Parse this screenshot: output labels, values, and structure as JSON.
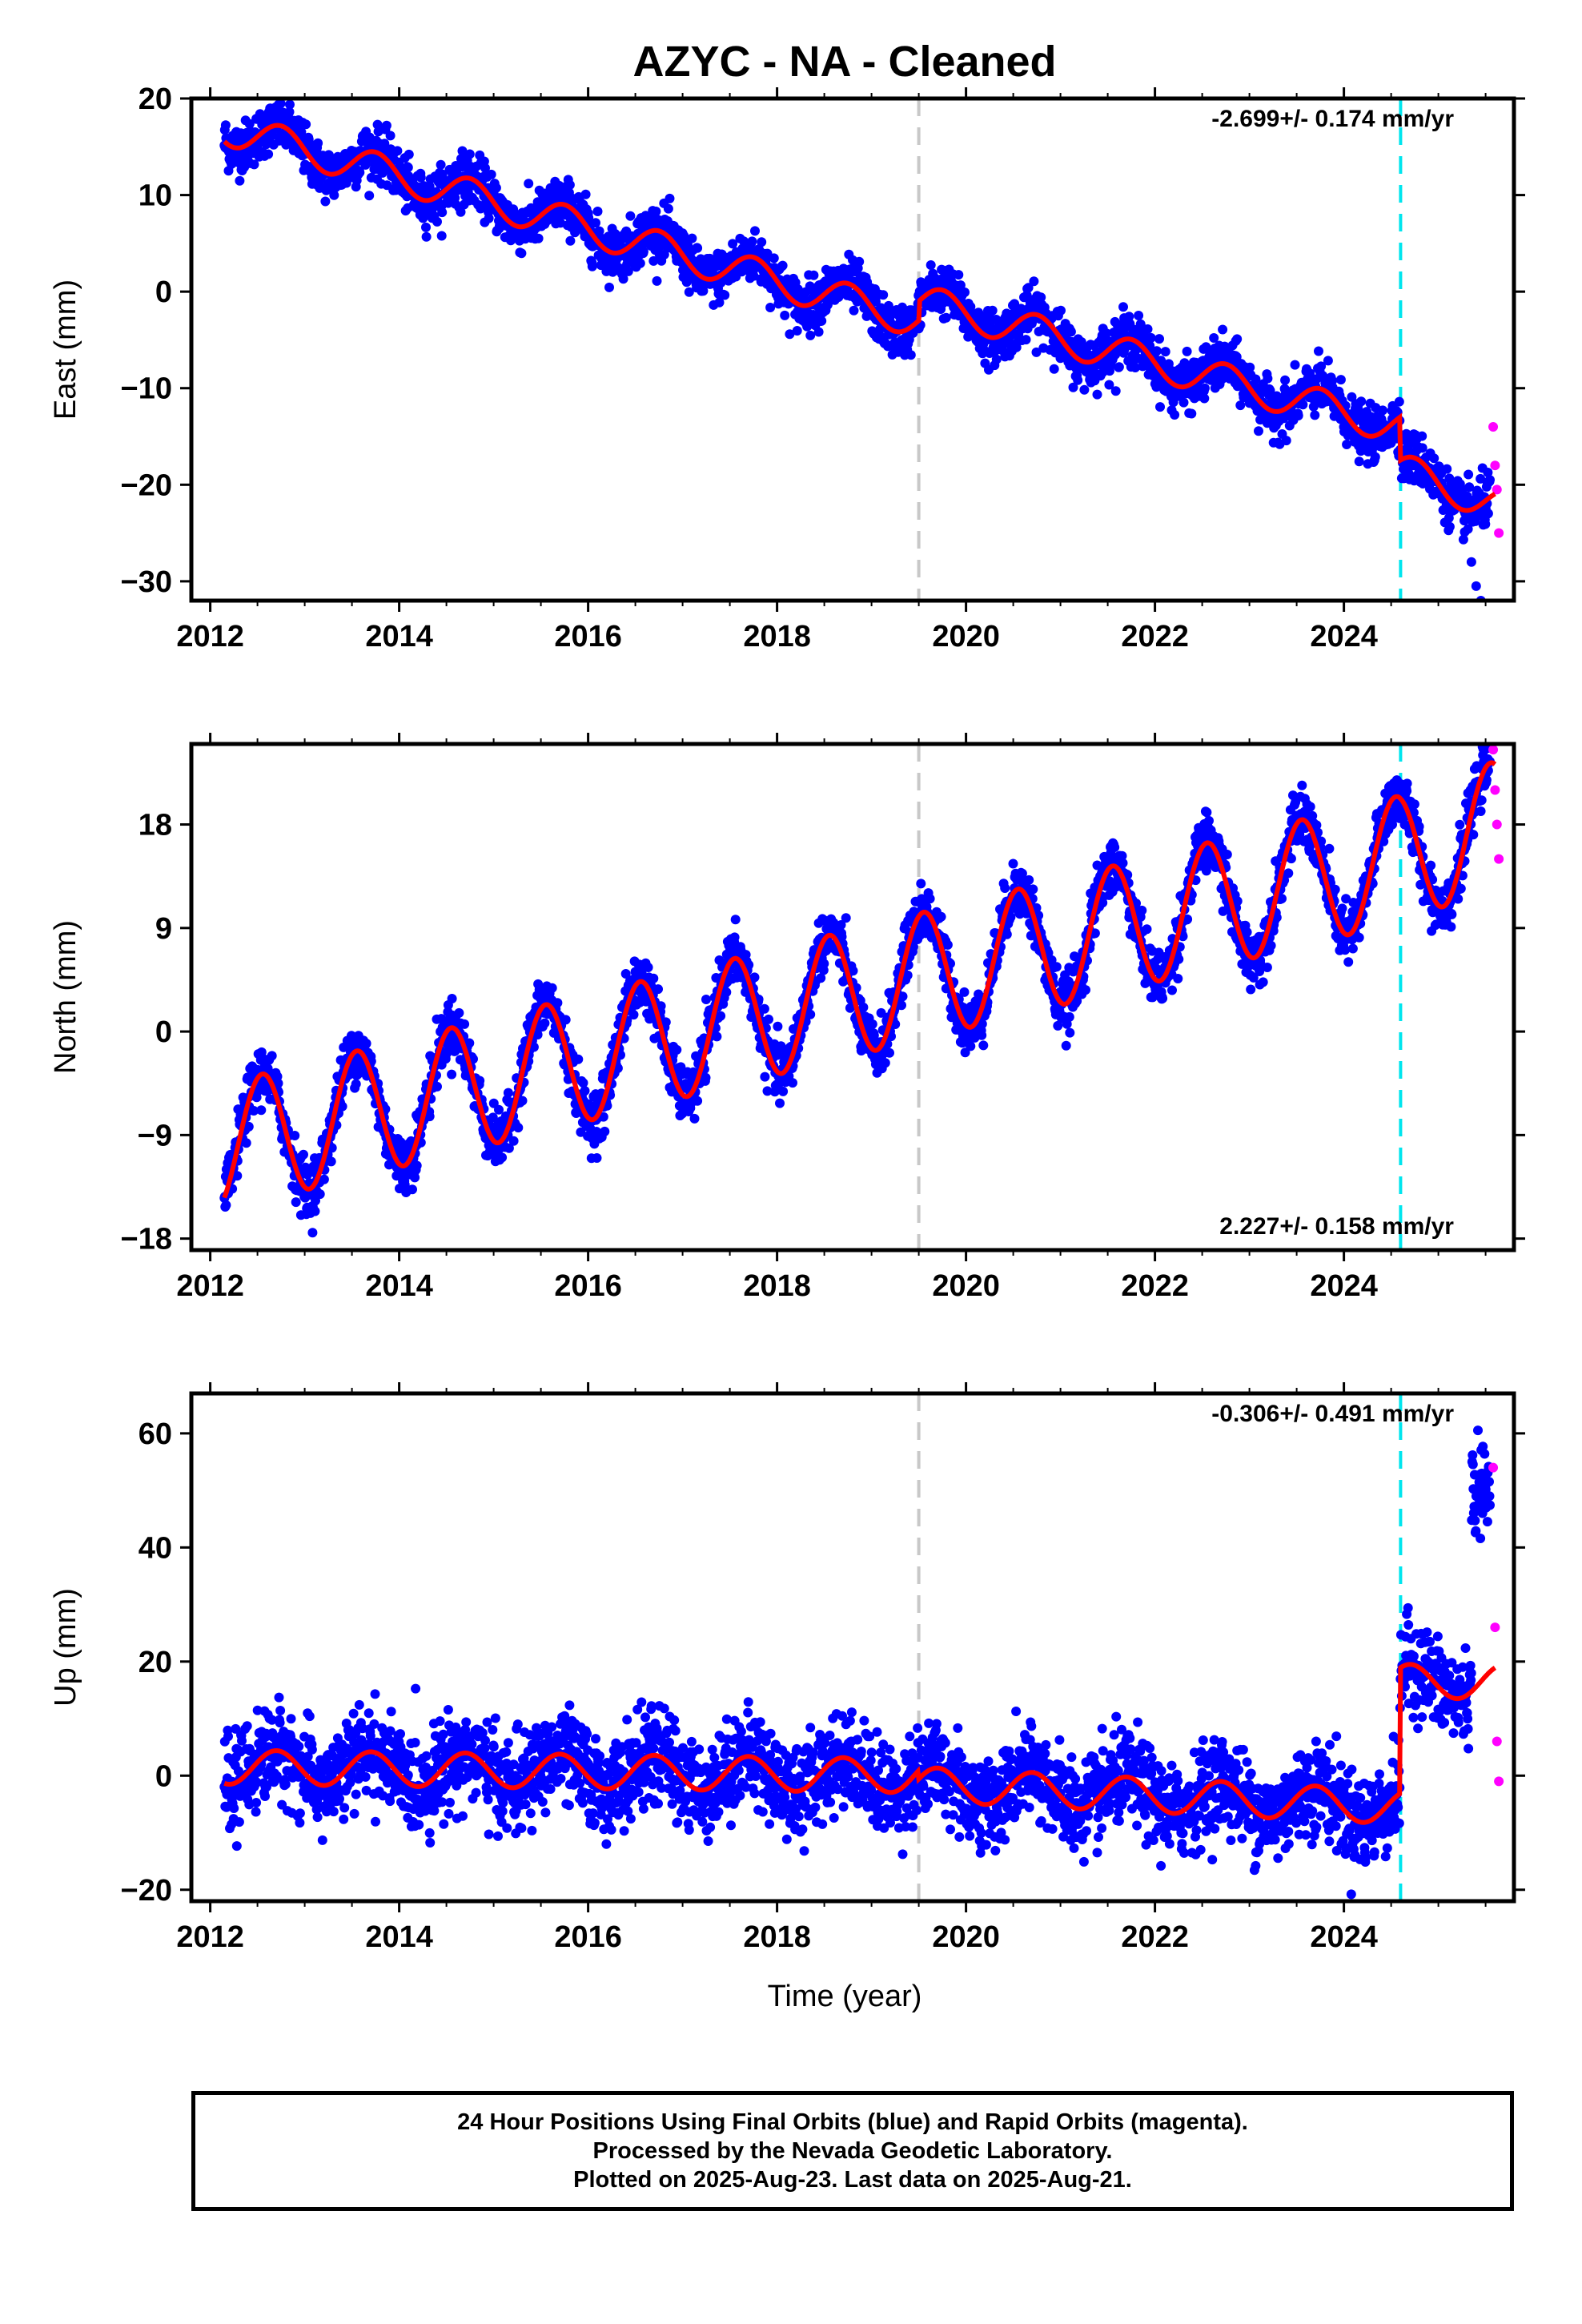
{
  "title": "AZYC  - NA - Cleaned",
  "xlabel": "Time (year)",
  "caption": {
    "line1": "24 Hour Positions Using Final Orbits (blue) and Rapid Orbits (magenta).",
    "line2": "Processed by the Nevada Geodetic Laboratory.",
    "line3": "Plotted on 2025-Aug-23. Last data on 2025-Aug-21."
  },
  "colors": {
    "final_orbits": "#0000ff",
    "rapid_orbits": "#ff00ff",
    "model": "#ff0000",
    "marker_gray": "#c8c8c8",
    "marker_cyan": "#00e5ee",
    "frame": "#000000"
  },
  "chart_data": [
    {
      "type": "scatter",
      "component": "east",
      "ylabel": "East (mm)",
      "rate_label": "-2.699+/- 0.174 mm/yr",
      "xlim": [
        2011.8,
        2025.8
      ],
      "ylim": [
        -32,
        20
      ],
      "xticks": [
        2012,
        2014,
        2016,
        2018,
        2020,
        2022,
        2024
      ],
      "yticks": [
        -30,
        -20,
        -10,
        0,
        10,
        20
      ],
      "vertical_markers": [
        2019.5,
        2024.6
      ],
      "model": {
        "trend": [
          [
            2012.15,
            17.0
          ],
          [
            2019.5,
            -3.0
          ],
          [
            2019.5,
            -1.0
          ],
          [
            2024.59,
            -14.0
          ],
          [
            2024.6,
            -18.5
          ],
          [
            2025.6,
            -22.0
          ]
        ],
        "seasonal_amplitude": 1.8,
        "seasonal_phase_peak": 0.75
      },
      "final_orbits": {
        "x_range": [
          2012.15,
          2025.55
        ],
        "scatter": 1.3,
        "tail_outliers": [
          [
            2025.35,
            -28.0
          ],
          [
            2025.4,
            -30.5
          ],
          [
            2025.45,
            -32.0
          ]
        ]
      },
      "rapid_orbits": {
        "x": [
          2025.58,
          2025.6,
          2025.62,
          2025.64
        ],
        "y": [
          -14.0,
          -18.0,
          -20.5,
          -25.0
        ]
      }
    },
    {
      "type": "scatter",
      "component": "north",
      "ylabel": "North (mm)",
      "rate_label": "2.227+/- 0.158 mm/yr",
      "xlim": [
        2011.8,
        2025.8
      ],
      "ylim": [
        -19,
        25
      ],
      "xticks": [
        2012,
        2014,
        2016,
        2018,
        2020,
        2022,
        2024
      ],
      "yticks": [
        -18,
        -9,
        0,
        9,
        18
      ],
      "vertical_markers": [
        2019.5,
        2024.6
      ],
      "model": {
        "trend": [
          [
            2012.15,
            -10.0
          ],
          [
            2024.59,
            15.0
          ],
          [
            2024.6,
            15.0
          ],
          [
            2025.6,
            18.0
          ]
        ],
        "seasonal_amplitude": 5.5,
        "seasonal_phase_peak": 0.55
      },
      "final_orbits": {
        "x_range": [
          2012.15,
          2025.55
        ],
        "scatter": 1.2
      },
      "rapid_orbits": {
        "x": [
          2025.58,
          2025.6,
          2025.62,
          2025.64
        ],
        "y": [
          24.5,
          21.0,
          18.0,
          15.0
        ]
      }
    },
    {
      "type": "scatter",
      "component": "up",
      "ylabel": "Up (mm)",
      "rate_label": "-0.306+/- 0.491 mm/yr",
      "xlim": [
        2011.8,
        2025.8
      ],
      "ylim": [
        -22,
        67
      ],
      "xticks": [
        2012,
        2014,
        2016,
        2018,
        2020,
        2022,
        2024
      ],
      "yticks": [
        -20,
        0,
        20,
        40,
        60
      ],
      "vertical_markers": [
        2019.5,
        2024.6
      ],
      "model": {
        "trend": [
          [
            2012.15,
            1.5
          ],
          [
            2019.49,
            0.0
          ],
          [
            2019.5,
            -1.5
          ],
          [
            2024.59,
            -5.5
          ],
          [
            2024.6,
            16.5
          ],
          [
            2025.6,
            16.5
          ]
        ],
        "seasonal_amplitude": 3.0,
        "seasonal_phase_peak": 0.7
      },
      "final_orbits": {
        "x_range": [
          2012.15,
          2025.55
        ],
        "scatter": 4.0,
        "tail_cluster": {
          "x_range": [
            2025.35,
            2025.55
          ],
          "y_center": 50.0,
          "scatter": 4.0
        }
      },
      "rapid_orbits": {
        "x": [
          2025.58,
          2025.6,
          2025.62,
          2025.64
        ],
        "y": [
          54.0,
          26.0,
          6.0,
          -1.0
        ]
      }
    }
  ]
}
